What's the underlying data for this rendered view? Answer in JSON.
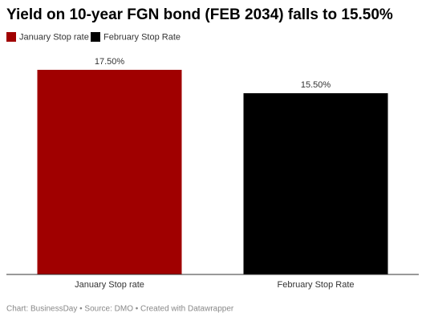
{
  "chart_data": {
    "type": "bar",
    "title": "Yield on 10-year FGN bond (FEB 2034) falls to 15.50%",
    "categories": [
      "January Stop rate",
      "February Stop Rate"
    ],
    "values": [
      17.5,
      15.5
    ],
    "value_labels": [
      "17.50%",
      "15.50%"
    ],
    "colors": [
      "#a00000",
      "#000000"
    ],
    "legend": "top-left",
    "footer": "Chart: BusinessDay • Source: DMO • Created with Datawrapper"
  }
}
